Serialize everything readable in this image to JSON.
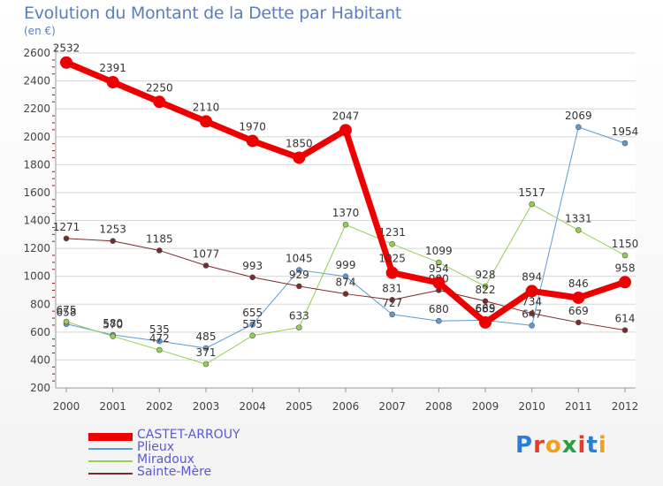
{
  "title": "Evolution du Montant de la Dette par Habitant",
  "unit": "(en €)",
  "logo": {
    "text": "Proxiti",
    "colors": [
      "#2a7fd0",
      "#e83a2a",
      "#f0a020",
      "#2aa040",
      "#e83a2a",
      "#2a7fd0",
      "#f0a020"
    ]
  },
  "chart_data": {
    "type": "line",
    "title": "Evolution du Montant de la Dette par Habitant",
    "ylabel": "(en €)",
    "x": [
      "2000",
      "2001",
      "2002",
      "2003",
      "2004",
      "2005",
      "2006",
      "2007",
      "2008",
      "2009",
      "2010",
      "2011",
      "2012"
    ],
    "ylim": [
      200,
      2600
    ],
    "yticks": [
      200,
      400,
      600,
      800,
      1000,
      1200,
      1400,
      1600,
      1800,
      2000,
      2200,
      2400,
      2600
    ],
    "grid": true,
    "legend_position": "bottom-left",
    "series": [
      {
        "name": "CASTET-ARROUY",
        "color": "#ee0000",
        "width": 7,
        "values": [
          2532,
          2391,
          2250,
          2110,
          1970,
          1850,
          2047,
          1025,
          954,
          669,
          894,
          846,
          958
        ]
      },
      {
        "name": "Plieux",
        "color": "#5b9bd5",
        "width": 1,
        "values": [
          658,
          580,
          535,
          485,
          655,
          1045,
          999,
          727,
          680,
          685,
          647,
          2069,
          1954
        ]
      },
      {
        "name": "Miradoux",
        "color": "#92d050",
        "width": 1,
        "values": [
          675,
          570,
          472,
          371,
          575,
          633,
          1370,
          1231,
          1099,
          928,
          1517,
          1331,
          1150
        ]
      },
      {
        "name": "Sainte-Mère",
        "color": "#7a2a2a",
        "width": 1,
        "values": [
          1271,
          1253,
          1185,
          1077,
          993,
          929,
          874,
          831,
          900,
          822,
          734,
          669,
          614
        ]
      }
    ]
  }
}
